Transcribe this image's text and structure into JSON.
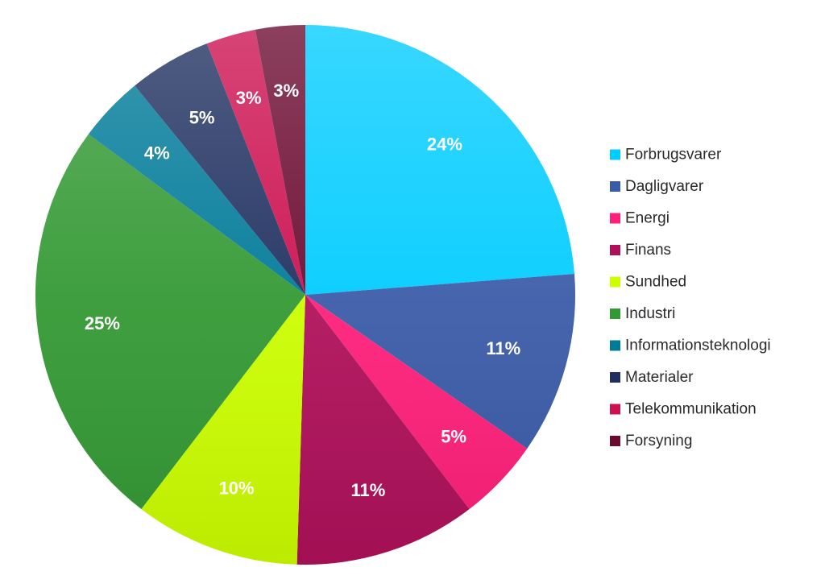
{
  "chart_data": {
    "type": "pie",
    "title": "",
    "labels": [
      "Forbrugsvarer",
      "Dagligvarer",
      "Energi",
      "Finans",
      "Sundhed",
      "Industri",
      "Informationsteknologi",
      "Materialer",
      "Telekommunikation",
      "Forsyning"
    ],
    "values": [
      24,
      11,
      5,
      11,
      10,
      25,
      4,
      5,
      3,
      3
    ],
    "value_labels": [
      "24%",
      "11%",
      "5%",
      "11%",
      "10%",
      "25%",
      "4%",
      "5%",
      "3%",
      "3%"
    ],
    "colors": [
      "#00ccff",
      "#3a5ba8",
      "#ff1f7a",
      "#b0105a",
      "#ccff00",
      "#339933",
      "#007a99",
      "#1f3060",
      "#cc1050",
      "#6b0a30"
    ],
    "start_angle_deg": 0,
    "direction": "clockwise",
    "legend_position": "right"
  }
}
